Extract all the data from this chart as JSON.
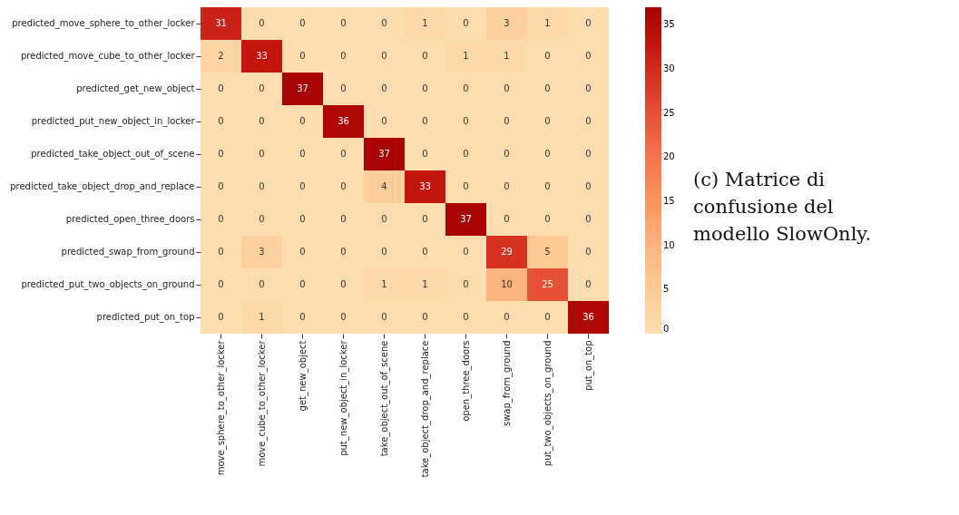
{
  "chart_data": {
    "type": "heatmap",
    "categories": [
      "move_sphere_to_other_locker",
      "move_cube_to_other_locker",
      "get_new_object",
      "put_new_object_in_locker",
      "take_object_out_of_scene",
      "take_object_drop_and_replace",
      "open_three_doors",
      "swap_from_ground",
      "put_two_objects_on_ground",
      "put_on_top"
    ],
    "y_categories": [
      "predicted_move_sphere_to_other_locker",
      "predicted_move_cube_to_other_locker",
      "predicted_get_new_object",
      "predicted_put_new_object_in_locker",
      "predicted_take_object_out_of_scene",
      "predicted_take_object_drop_and_replace",
      "predicted_open_three_doors",
      "predicted_swap_from_ground",
      "predicted_put_two_objects_on_ground",
      "predicted_put_on_top"
    ],
    "cells": [
      [
        31,
        0,
        0,
        0,
        0,
        1,
        0,
        3,
        1,
        0
      ],
      [
        2,
        33,
        0,
        0,
        0,
        0,
        1,
        1,
        0,
        0
      ],
      [
        0,
        0,
        37,
        0,
        0,
        0,
        0,
        0,
        0,
        0
      ],
      [
        0,
        0,
        0,
        36,
        0,
        0,
        0,
        0,
        0,
        0
      ],
      [
        0,
        0,
        0,
        0,
        37,
        0,
        0,
        0,
        0,
        0
      ],
      [
        0,
        0,
        0,
        0,
        4,
        33,
        0,
        0,
        0,
        0
      ],
      [
        0,
        0,
        0,
        0,
        0,
        0,
        37,
        0,
        0,
        0
      ],
      [
        0,
        3,
        0,
        0,
        0,
        0,
        0,
        29,
        5,
        0
      ],
      [
        0,
        0,
        0,
        0,
        1,
        1,
        0,
        10,
        25,
        0
      ],
      [
        0,
        1,
        0,
        0,
        0,
        0,
        0,
        0,
        0,
        36
      ]
    ],
    "clim": [
      0,
      37
    ],
    "cticks": [
      0,
      5,
      10,
      15,
      20,
      25,
      30,
      35
    ],
    "data_labels": true,
    "annotations": [
      "(c) Matrice di confusione del modello SlowOnly."
    ]
  }
}
